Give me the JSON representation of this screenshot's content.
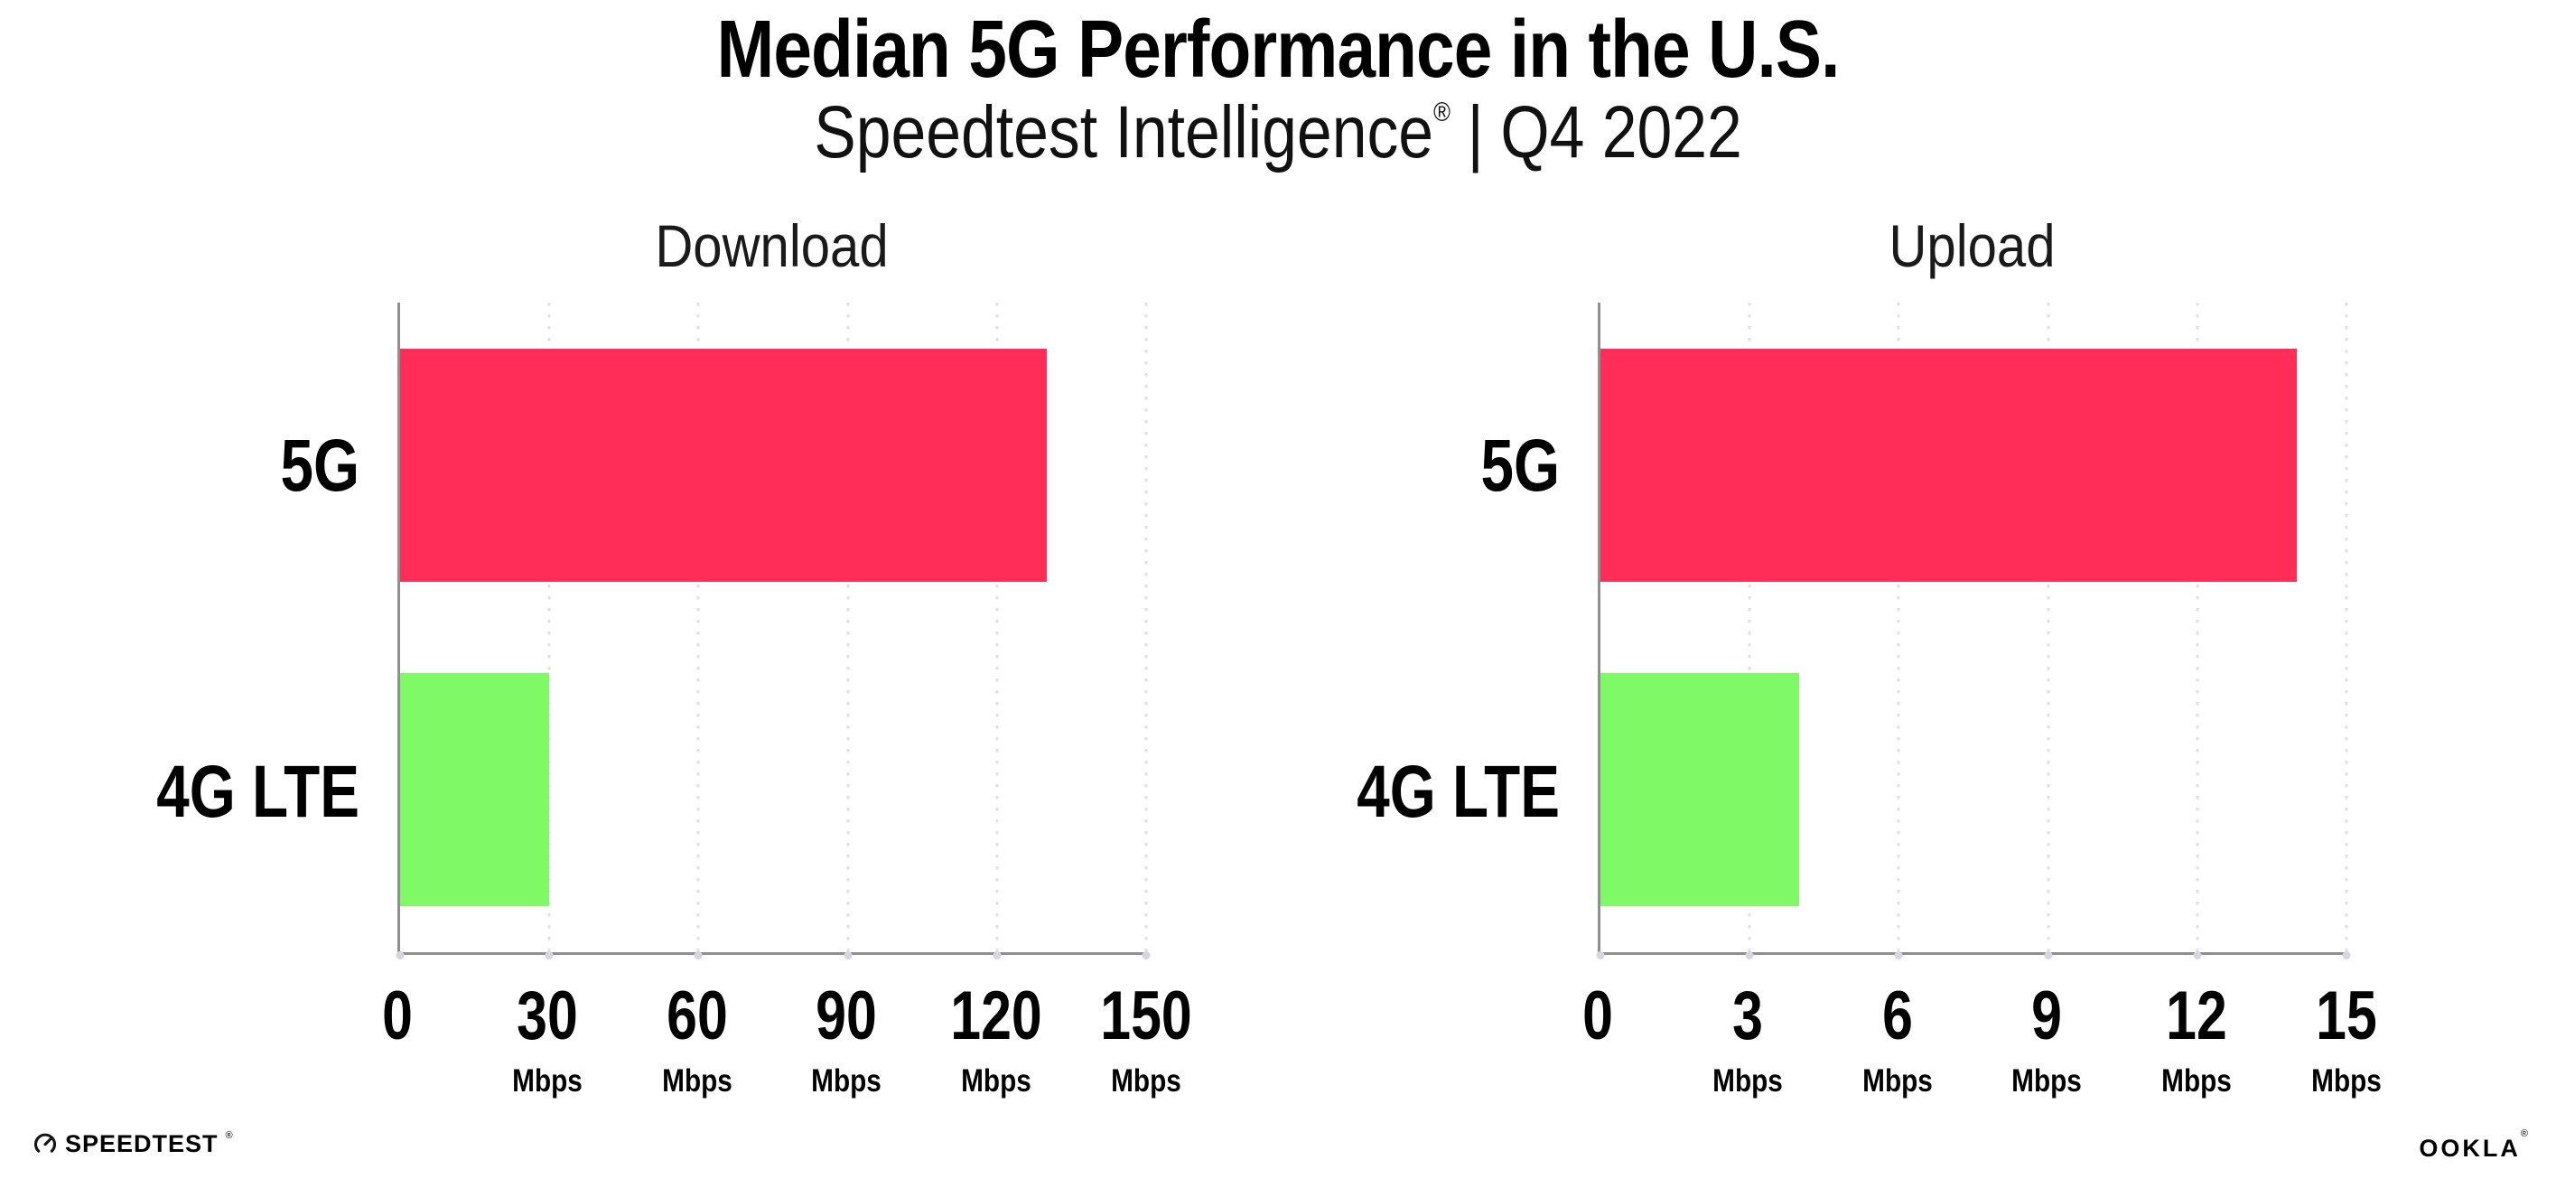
{
  "header": {
    "title": "Median 5G Performance in the U.S.",
    "subtitle_brand": "Speedtest Intelligence",
    "subtitle_reg": "®",
    "subtitle_sep": "|",
    "subtitle_period": "Q4 2022"
  },
  "colors": {
    "bar_5g": "#FF2D57",
    "bar_4g_lte": "#7FFA66",
    "axis": "#8f8f8f",
    "gridline_dots": "#e0e0ea",
    "axis_tick_dots": "#d6d6e2",
    "text": "#000000"
  },
  "chart_data": [
    {
      "type": "bar",
      "orientation": "horizontal",
      "title": "Download",
      "categories": [
        "5G",
        "4G LTE"
      ],
      "values": [
        130,
        30
      ],
      "bar_colors": [
        "#FF2D57",
        "#7FFA66"
      ],
      "unit": "Mbps",
      "xlim": [
        0,
        150
      ],
      "xticks": [
        0,
        30,
        60,
        90,
        120,
        150
      ],
      "tick_unit_label": "Mbps",
      "grid": "dotted-vertical-gridlines",
      "legend": "none"
    },
    {
      "type": "bar",
      "orientation": "horizontal",
      "title": "Upload",
      "categories": [
        "5G",
        "4G LTE"
      ],
      "values": [
        14,
        4
      ],
      "bar_colors": [
        "#FF2D57",
        "#7FFA66"
      ],
      "unit": "Mbps",
      "xlim": [
        0,
        15
      ],
      "xticks": [
        0,
        3,
        6,
        9,
        12,
        15
      ],
      "tick_unit_label": "Mbps",
      "grid": "dotted-vertical-gridlines",
      "legend": "none"
    }
  ],
  "footer": {
    "speedtest_label": "SPEEDTEST",
    "speedtest_reg": "®",
    "ookla_label": "OOKLA",
    "ookla_reg": "®"
  }
}
